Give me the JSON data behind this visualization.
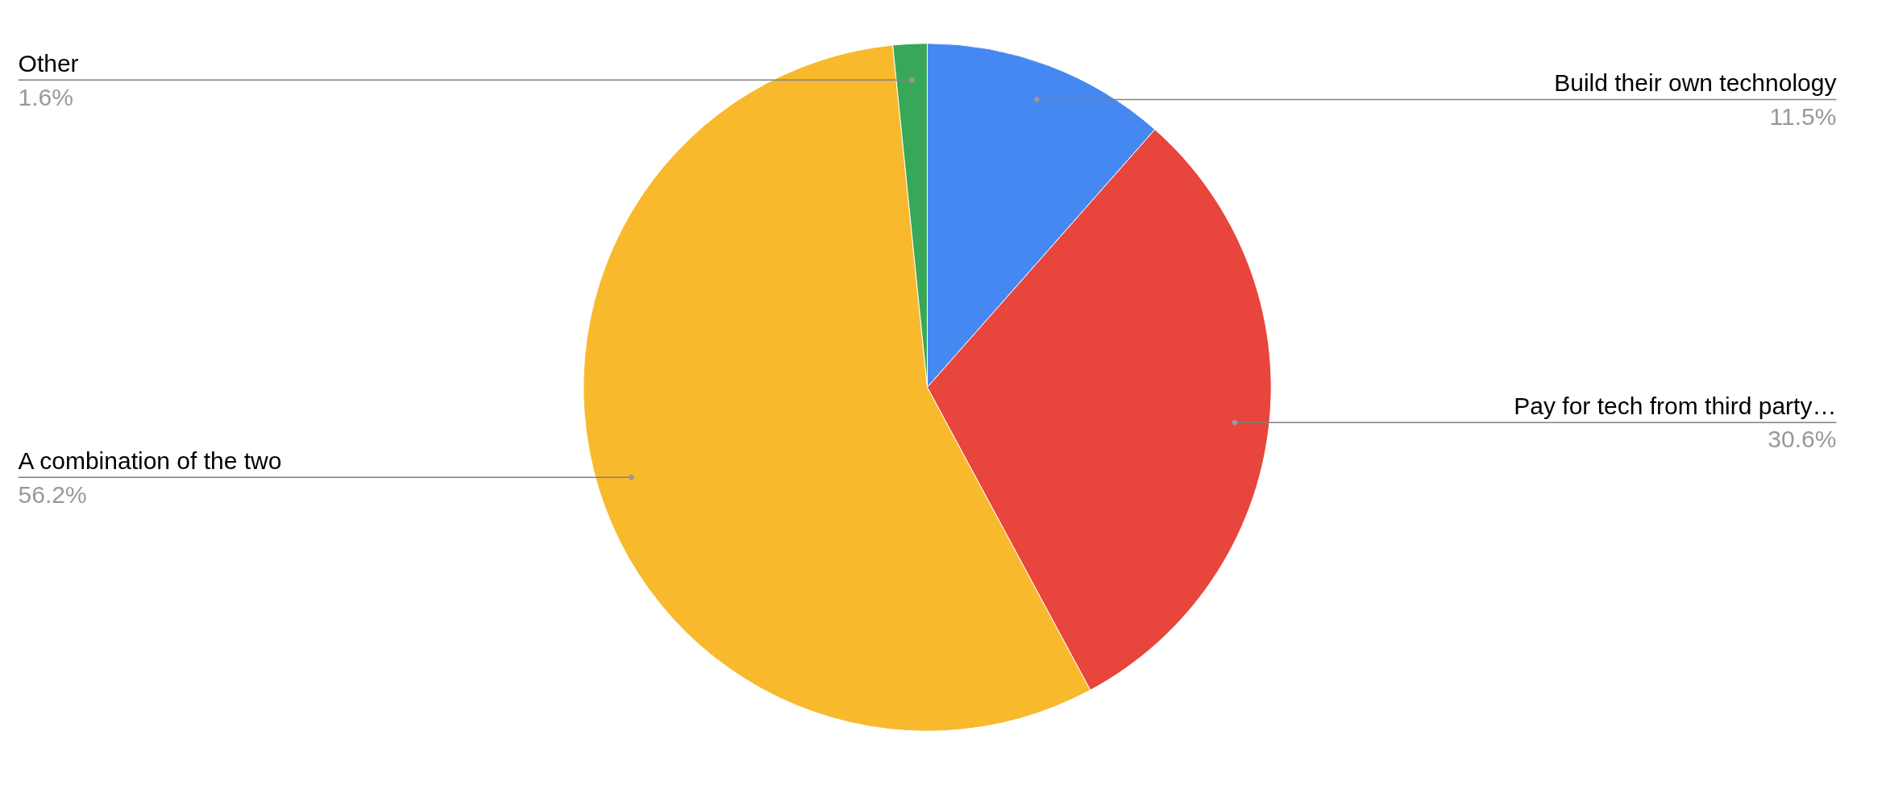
{
  "chart_data": {
    "type": "pie",
    "categories": [
      "Build their own technology",
      "Pay for tech from third party…",
      "A combination of the two",
      "Other"
    ],
    "values": [
      11.5,
      30.6,
      56.2,
      1.6
    ],
    "colors": [
      "#4688f1",
      "#e8453c",
      "#f8b92d",
      "#38a757"
    ],
    "value_labels": [
      "11.5%",
      "30.6%",
      "56.2%",
      "1.6%"
    ]
  }
}
